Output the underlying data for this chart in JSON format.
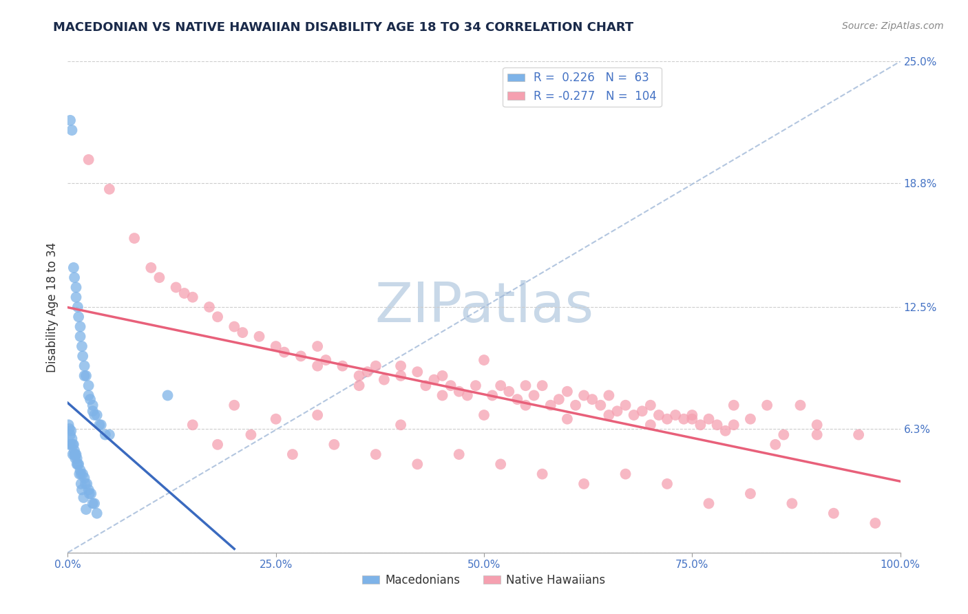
{
  "title": "MACEDONIAN VS NATIVE HAWAIIAN DISABILITY AGE 18 TO 34 CORRELATION CHART",
  "source": "Source: ZipAtlas.com",
  "ylabel": "Disability Age 18 to 34",
  "r_macedonian": 0.226,
  "n_macedonian": 63,
  "r_native_hawaiian": -0.277,
  "n_native_hawaiian": 104,
  "xlim": [
    0,
    100
  ],
  "ylim": [
    0,
    25
  ],
  "yticks": [
    0,
    6.3,
    12.5,
    18.8,
    25.0
  ],
  "xticks": [
    0,
    25,
    50,
    75,
    100
  ],
  "xtick_labels": [
    "0.0%",
    "25.0%",
    "50.0%",
    "75.0%",
    "100.0%"
  ],
  "ytick_labels": [
    "",
    "6.3%",
    "12.5%",
    "18.8%",
    "25.0%"
  ],
  "macedonian_color": "#7eb3e8",
  "native_hawaiian_color": "#f5a0b0",
  "macedonian_line_color": "#3a6abf",
  "native_hawaiian_line_color": "#e8607a",
  "diag_line_color": "#a0b8d8",
  "grid_color": "#cccccc",
  "background_color": "#ffffff",
  "watermark_color": "#c8d8e8",
  "title_color": "#1a2a4a",
  "axis_color": "#333333",
  "tick_label_color": "#4472c4",
  "macedonians_x": [
    0.3,
    0.5,
    0.7,
    0.8,
    1.0,
    1.0,
    1.2,
    1.3,
    1.5,
    1.5,
    1.7,
    1.8,
    2.0,
    2.0,
    2.2,
    2.5,
    2.5,
    2.7,
    3.0,
    3.0,
    3.2,
    3.5,
    3.8,
    4.0,
    4.5,
    5.0,
    0.2,
    0.4,
    0.6,
    0.8,
    0.9,
    1.1,
    1.3,
    1.5,
    1.6,
    1.8,
    2.0,
    2.1,
    2.3,
    2.5,
    2.6,
    2.8,
    3.0,
    3.2,
    3.5,
    0.1,
    0.2,
    0.3,
    0.4,
    0.5,
    0.6,
    0.7,
    0.8,
    0.9,
    1.0,
    1.1,
    1.2,
    1.4,
    1.6,
    1.7,
    1.9,
    2.2,
    12.0
  ],
  "macedonians_y": [
    22.0,
    21.5,
    14.5,
    14.0,
    13.5,
    13.0,
    12.5,
    12.0,
    11.5,
    11.0,
    10.5,
    10.0,
    9.5,
    9.0,
    9.0,
    8.5,
    8.0,
    7.8,
    7.5,
    7.2,
    7.0,
    7.0,
    6.5,
    6.5,
    6.0,
    6.0,
    5.5,
    5.5,
    5.0,
    5.0,
    4.8,
    4.5,
    4.5,
    4.2,
    4.0,
    4.0,
    3.8,
    3.5,
    3.5,
    3.2,
    3.0,
    3.0,
    2.5,
    2.5,
    2.0,
    6.5,
    6.3,
    6.0,
    6.2,
    5.8,
    5.5,
    5.5,
    5.2,
    5.0,
    5.0,
    4.8,
    4.5,
    4.0,
    3.5,
    3.2,
    2.8,
    2.2,
    8.0
  ],
  "native_hawaiians_x": [
    2.5,
    5.0,
    8.0,
    10.0,
    11.0,
    13.0,
    14.0,
    15.0,
    17.0,
    18.0,
    20.0,
    21.0,
    23.0,
    25.0,
    26.0,
    28.0,
    30.0,
    30.0,
    31.0,
    33.0,
    35.0,
    36.0,
    37.0,
    38.0,
    40.0,
    40.0,
    42.0,
    43.0,
    44.0,
    45.0,
    46.0,
    47.0,
    48.0,
    49.0,
    50.0,
    51.0,
    52.0,
    53.0,
    54.0,
    55.0,
    56.0,
    57.0,
    58.0,
    59.0,
    60.0,
    61.0,
    62.0,
    63.0,
    64.0,
    65.0,
    66.0,
    67.0,
    68.0,
    69.0,
    70.0,
    71.0,
    72.0,
    73.0,
    74.0,
    75.0,
    76.0,
    77.0,
    78.0,
    79.0,
    80.0,
    82.0,
    84.0,
    86.0,
    88.0,
    90.0,
    15.0,
    20.0,
    25.0,
    30.0,
    35.0,
    40.0,
    45.0,
    50.0,
    55.0,
    60.0,
    65.0,
    70.0,
    75.0,
    80.0,
    85.0,
    90.0,
    95.0,
    18.0,
    22.0,
    27.0,
    32.0,
    37.0,
    42.0,
    47.0,
    52.0,
    57.0,
    62.0,
    67.0,
    72.0,
    77.0,
    82.0,
    87.0,
    92.0,
    97.0
  ],
  "native_hawaiians_y": [
    20.0,
    18.5,
    16.0,
    14.5,
    14.0,
    13.5,
    13.2,
    13.0,
    12.5,
    12.0,
    11.5,
    11.2,
    11.0,
    10.5,
    10.2,
    10.0,
    10.5,
    9.5,
    9.8,
    9.5,
    9.0,
    9.2,
    9.5,
    8.8,
    9.5,
    9.0,
    9.2,
    8.5,
    8.8,
    9.0,
    8.5,
    8.2,
    8.0,
    8.5,
    9.8,
    8.0,
    8.5,
    8.2,
    7.8,
    8.5,
    8.0,
    8.5,
    7.5,
    7.8,
    8.2,
    7.5,
    8.0,
    7.8,
    7.5,
    8.0,
    7.2,
    7.5,
    7.0,
    7.2,
    7.5,
    7.0,
    6.8,
    7.0,
    6.8,
    7.0,
    6.5,
    6.8,
    6.5,
    6.2,
    6.5,
    6.8,
    7.5,
    6.0,
    7.5,
    6.0,
    6.5,
    7.5,
    6.8,
    7.0,
    8.5,
    6.5,
    8.0,
    7.0,
    7.5,
    6.8,
    7.0,
    6.5,
    6.8,
    7.5,
    5.5,
    6.5,
    6.0,
    5.5,
    6.0,
    5.0,
    5.5,
    5.0,
    4.5,
    5.0,
    4.5,
    4.0,
    3.5,
    4.0,
    3.5,
    2.5,
    3.0,
    2.5,
    2.0,
    1.5
  ]
}
